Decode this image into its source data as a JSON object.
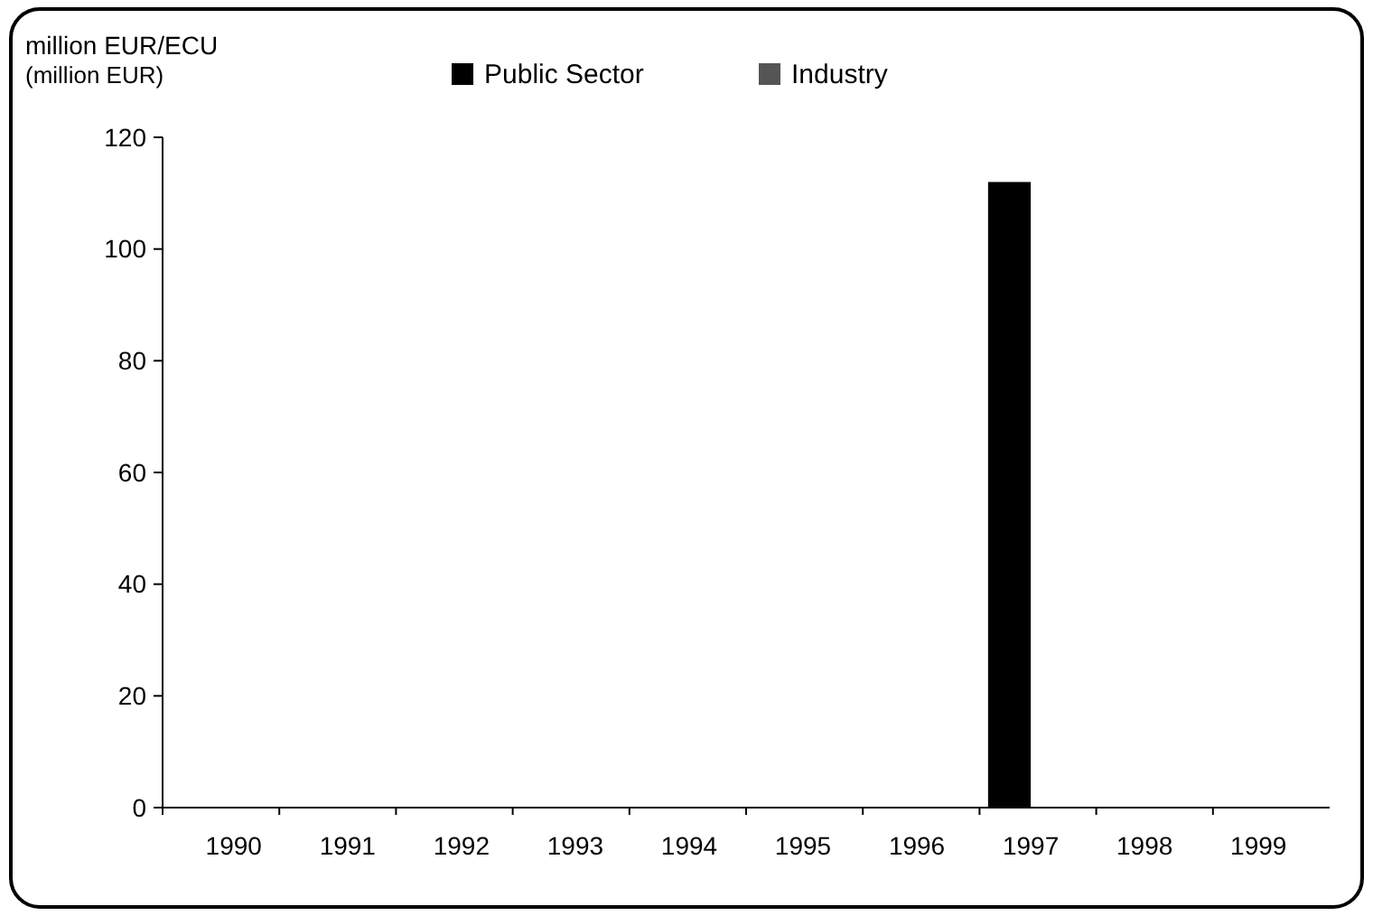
{
  "chart_data": {
    "type": "bar",
    "ylabel": "million EUR/ECU",
    "annotations": [
      "(million EUR)"
    ],
    "categories": [
      "1990",
      "1991",
      "1992",
      "1993",
      "1994",
      "1995",
      "1996",
      "1997",
      "1998",
      "1999"
    ],
    "series": [
      {
        "name": "Public Sector",
        "color": "#000000",
        "values": [
          0,
          0,
          0,
          0,
          0,
          0,
          0,
          112,
          0,
          0
        ]
      },
      {
        "name": "Industry",
        "color": "#555555",
        "values": [
          0,
          0,
          0,
          0,
          0,
          0,
          0,
          0,
          0,
          0
        ]
      }
    ],
    "ylim": [
      0,
      120
    ],
    "yticks": [
      0,
      20,
      40,
      60,
      80,
      100,
      120
    ],
    "grid": false,
    "legend": "top"
  }
}
